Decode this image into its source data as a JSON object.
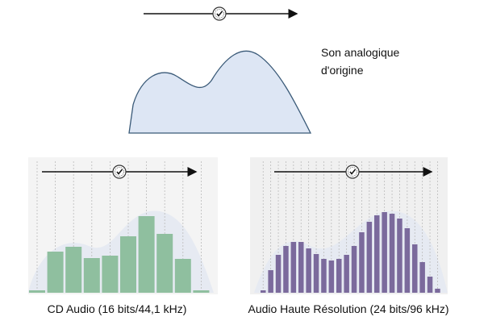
{
  "analog": {
    "label_lines": [
      "Son analogique",
      "d'origine"
    ]
  },
  "cd": {
    "label": "CD Audio (16 bits/44,1 kHz)",
    "samples": [
      3,
      51,
      57,
      43,
      46,
      70,
      95,
      73,
      42,
      3
    ]
  },
  "hires": {
    "label": "Audio Haute Résolution (24 bits/96 kHz)",
    "samples": [
      3,
      28,
      47,
      58,
      63,
      63,
      55,
      48,
      42,
      40,
      42,
      47,
      58,
      75,
      88,
      96,
      100,
      98,
      92,
      80,
      60,
      38,
      20,
      5
    ]
  }
}
